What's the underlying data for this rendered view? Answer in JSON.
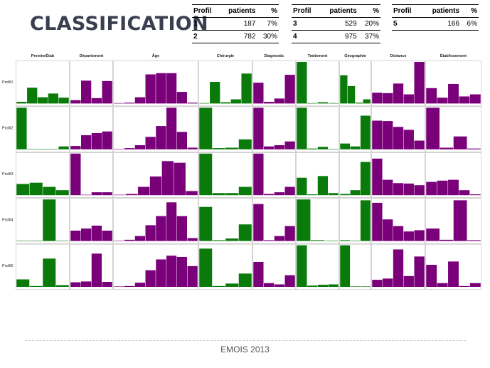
{
  "title": "CLASSIFICATION",
  "tables": [
    {
      "headers": [
        "Profil",
        "patients",
        "%"
      ],
      "rows": [
        [
          "1",
          "187",
          "7%"
        ],
        [
          "2",
          "782",
          "30%"
        ]
      ]
    },
    {
      "headers": [
        "Profil",
        "patients",
        "%"
      ],
      "rows": [
        [
          "3",
          "529",
          "20%"
        ],
        [
          "4",
          "975",
          "37%"
        ]
      ]
    },
    {
      "headers": [
        "Profil",
        "patients",
        "%"
      ],
      "rows": [
        [
          "5",
          "166",
          "6%"
        ]
      ]
    }
  ],
  "chart_data": {
    "type": "bar",
    "colors": {
      "green": "#0a7a0a",
      "purple": "#7a007a"
    },
    "columns": [
      {
        "label": "PremierÉtab",
        "color": "green"
      },
      {
        "label": "Département",
        "color": "purple"
      },
      {
        "label": "Âge",
        "color": "purple"
      },
      {
        "label": "Chirurgie",
        "color": "green"
      },
      {
        "label": "Diagnostic",
        "color": "purple"
      },
      {
        "label": "Traitement",
        "color": "green"
      },
      {
        "label": "Géographie",
        "color": "green"
      },
      {
        "label": "Distance",
        "color": "purple"
      },
      {
        "label": "Établissement",
        "color": "purple"
      }
    ],
    "rows": [
      {
        "label": "Profil1",
        "values": [
          [
            0.04,
            0.38,
            0.15,
            0.24,
            0.14
          ],
          [
            0.08,
            0.55,
            0.13,
            0.54
          ],
          [
            0.01,
            0.02,
            0.15,
            0.7,
            0.73,
            0.73,
            0.28,
            0.02
          ],
          [
            0.01,
            0.52,
            0.03,
            0.1,
            0.72
          ],
          [
            0.5,
            0.04,
            0.12,
            0.69
          ],
          [
            1.0,
            0.01,
            0.03,
            0.01
          ],
          [
            0.68,
            0.42,
            0.02,
            0.1
          ],
          [
            0.26,
            0.25,
            0.48,
            0.22,
            1.0
          ],
          [
            0.37,
            0.14,
            0.47,
            0.17,
            0.22
          ]
        ]
      },
      {
        "label": "Profil2",
        "values": [
          [
            1.0,
            0.01,
            0.01,
            0.01,
            0.07
          ],
          [
            0.08,
            0.34,
            0.39,
            0.43
          ],
          [
            0.01,
            0.03,
            0.1,
            0.3,
            0.56,
            1.0,
            0.42,
            0.04
          ],
          [
            1.0,
            0.03,
            0.04,
            0.24
          ],
          [
            1.0,
            0.07,
            0.1,
            0.19
          ],
          [
            1.0,
            0.02,
            0.06,
            0.01
          ],
          [
            0.14,
            0.07,
            0.81
          ],
          [
            0.69,
            0.68,
            0.54,
            0.47,
            0.21
          ],
          [
            1.0,
            0.04,
            0.31,
            0.02
          ]
        ]
      },
      {
        "label": "Profil3",
        "values": [
          [
            0.27,
            0.3,
            0.2,
            0.12
          ],
          [
            1.0,
            0.01,
            0.07,
            0.07
          ],
          [
            0.01,
            0.03,
            0.2,
            0.45,
            0.82,
            0.78,
            0.1
          ],
          [
            1.0,
            0.05,
            0.05,
            0.2
          ],
          [
            1.0,
            0.03,
            0.07,
            0.2
          ],
          [
            0.42,
            0.02,
            0.46,
            0.05
          ],
          [
            0.03,
            0.12,
            0.8
          ],
          [
            0.88,
            0.37,
            0.29,
            0.28,
            0.24
          ],
          [
            0.32,
            0.35,
            0.37,
            0.12,
            0.02
          ]
        ]
      },
      {
        "label": "Profil4",
        "values": [
          [
            0.01,
            0.01,
            1.0,
            0.01
          ],
          [
            0.25,
            0.3,
            0.37,
            0.25
          ],
          [
            0.01,
            0.03,
            0.12,
            0.38,
            0.6,
            0.93,
            0.6,
            0.07
          ],
          [
            0.82,
            0.02,
            0.06,
            0.4
          ],
          [
            0.89,
            0.02,
            0.12,
            0.36
          ],
          [
            1.0,
            0.02,
            0.01
          ],
          [
            0.02,
            0.01,
            0.98
          ],
          [
            0.92,
            0.52,
            0.36,
            0.23,
            0.26
          ],
          [
            0.3,
            0.03,
            0.98,
            0.02
          ]
        ]
      },
      {
        "label": "Profil5",
        "values": [
          [
            0.18,
            0.02,
            0.68,
            0.04
          ],
          [
            0.11,
            0.13,
            0.8,
            0.12
          ],
          [
            0.01,
            0.02,
            0.1,
            0.4,
            0.66,
            0.75,
            0.72,
            0.5
          ],
          [
            0.92,
            0.02,
            0.08,
            0.32
          ],
          [
            0.6,
            0.09,
            0.06,
            0.28
          ],
          [
            1.0,
            0.03,
            0.05,
            0.06
          ],
          [
            1.0,
            0.01,
            0.01
          ],
          [
            0.17,
            0.2,
            0.9,
            0.26,
            0.73
          ],
          [
            0.53,
            0.09,
            0.61,
            0.02,
            0.09
          ]
        ]
      }
    ]
  },
  "footer": "EMOIS 2013"
}
